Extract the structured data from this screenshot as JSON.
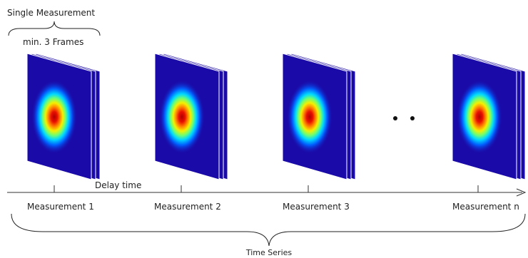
{
  "header": {
    "single_measurement": "Single Measurement",
    "min_frames": "min. 3 Frames"
  },
  "timeline": {
    "delay_label": "Delay time",
    "time_series_label": "Time Series"
  },
  "measurements": [
    {
      "label": "Measurement 1"
    },
    {
      "label": "Measurement 2"
    },
    {
      "label": "Measurement 3"
    },
    {
      "label": "Measurement n"
    }
  ],
  "colors": {
    "frame_background": "#1a0aa8",
    "hot_core": "#a80000",
    "axis": "#333333"
  }
}
